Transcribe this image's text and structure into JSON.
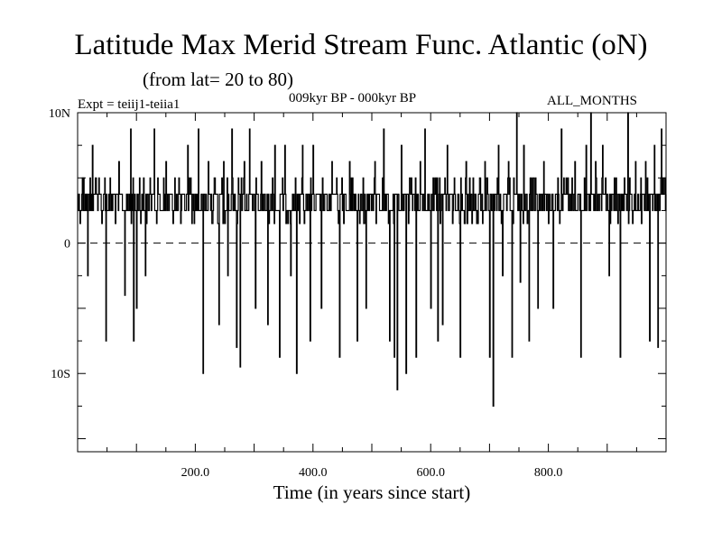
{
  "header": {
    "title": "Latitude Max Merid Stream Func. Atlantic (oN)",
    "subtitle": "(from lat= 20 to 80)",
    "expt": "Expt = teiij1-teiia1",
    "period": "009kyr BP - 000kyr BP",
    "months": "ALL_MONTHS"
  },
  "colors": {
    "line": "#000000",
    "background": "#ffffff"
  },
  "chart_data": {
    "type": "line",
    "title": "Latitude Max Merid Stream Func. Atlantic (oN)",
    "subtitle": "(from lat= 20 to 80)",
    "xlabel": "Time (in years since start)",
    "ylabel": "",
    "xlim": [
      0,
      1000
    ],
    "ylim": [
      -16,
      10
    ],
    "x_ticks": [
      {
        "value": 200,
        "label": "200.0"
      },
      {
        "value": 400,
        "label": "400.0"
      },
      {
        "value": 600,
        "label": "600.0"
      },
      {
        "value": 800,
        "label": "800.0"
      }
    ],
    "y_ticks": [
      {
        "value": 10,
        "label": "10N"
      },
      {
        "value": 0,
        "label": "0"
      },
      {
        "value": -10,
        "label": "10S"
      }
    ],
    "zero_line": "dashed",
    "series": [
      {
        "baseline": [
          2.5,
          3.75
        ],
        "spikes": [
          {
            "x": 10,
            "y": 5
          },
          {
            "x": 17,
            "y": -2.5
          },
          {
            "x": 25,
            "y": 7.5
          },
          {
            "x": 36,
            "y": 5
          },
          {
            "x": 48,
            "y": -7.5
          },
          {
            "x": 55,
            "y": 5
          },
          {
            "x": 70,
            "y": 6.25
          },
          {
            "x": 80,
            "y": -4
          },
          {
            "x": 90,
            "y": 8.75
          },
          {
            "x": 95,
            "y": -7.5
          },
          {
            "x": 100,
            "y": -5
          },
          {
            "x": 105,
            "y": 5
          },
          {
            "x": 115,
            "y": -2.5
          },
          {
            "x": 130,
            "y": 8.75
          },
          {
            "x": 150,
            "y": 6.25
          },
          {
            "x": 165,
            "y": 5
          },
          {
            "x": 175,
            "y": 1.5
          },
          {
            "x": 187,
            "y": 7.5
          },
          {
            "x": 205,
            "y": 8.75
          },
          {
            "x": 213,
            "y": -10
          },
          {
            "x": 222,
            "y": 6.25
          },
          {
            "x": 232,
            "y": 5
          },
          {
            "x": 240,
            "y": -6.25
          },
          {
            "x": 248,
            "y": 6.25
          },
          {
            "x": 255,
            "y": -2.5
          },
          {
            "x": 262,
            "y": 8.75
          },
          {
            "x": 270,
            "y": -8
          },
          {
            "x": 276,
            "y": -9.5
          },
          {
            "x": 283,
            "y": 6.25
          },
          {
            "x": 292,
            "y": 8.75
          },
          {
            "x": 302,
            "y": -5
          },
          {
            "x": 312,
            "y": 6.25
          },
          {
            "x": 323,
            "y": -6.25
          },
          {
            "x": 335,
            "y": 7.5
          },
          {
            "x": 343,
            "y": -8.75
          },
          {
            "x": 352,
            "y": 7.5
          },
          {
            "x": 362,
            "y": -2.5
          },
          {
            "x": 372,
            "y": -10
          },
          {
            "x": 382,
            "y": 7.5
          },
          {
            "x": 395,
            "y": -7.5
          },
          {
            "x": 400,
            "y": 7.5
          },
          {
            "x": 414,
            "y": -5
          },
          {
            "x": 432,
            "y": 6.25
          },
          {
            "x": 445,
            "y": -8.75
          },
          {
            "x": 462,
            "y": 6.25
          },
          {
            "x": 475,
            "y": -7.5
          },
          {
            "x": 490,
            "y": -5
          },
          {
            "x": 505,
            "y": 6.25
          },
          {
            "x": 520,
            "y": 8.75
          },
          {
            "x": 530,
            "y": -7.5
          },
          {
            "x": 538,
            "y": -8.75
          },
          {
            "x": 543,
            "y": -11.25
          },
          {
            "x": 550,
            "y": 7.5
          },
          {
            "x": 558,
            "y": -10
          },
          {
            "x": 565,
            "y": 5
          },
          {
            "x": 575,
            "y": -8.75
          },
          {
            "x": 582,
            "y": 6.25
          },
          {
            "x": 590,
            "y": 8.75
          },
          {
            "x": 600,
            "y": -5
          },
          {
            "x": 612,
            "y": -7.5
          },
          {
            "x": 620,
            "y": -6.25
          },
          {
            "x": 628,
            "y": 7.5
          },
          {
            "x": 640,
            "y": 5
          },
          {
            "x": 650,
            "y": -8.75
          },
          {
            "x": 660,
            "y": 6.25
          },
          {
            "x": 672,
            "y": 5
          },
          {
            "x": 680,
            "y": 1.5
          },
          {
            "x": 692,
            "y": 6.25
          },
          {
            "x": 700,
            "y": -8.75
          },
          {
            "x": 706,
            "y": -12.5
          },
          {
            "x": 715,
            "y": 7.5
          },
          {
            "x": 722,
            "y": -2.5
          },
          {
            "x": 732,
            "y": 6.25
          },
          {
            "x": 738,
            "y": -8.75
          },
          {
            "x": 746,
            "y": 10
          },
          {
            "x": 752,
            "y": -3
          },
          {
            "x": 758,
            "y": 7.5
          },
          {
            "x": 767,
            "y": -7.5
          },
          {
            "x": 775,
            "y": 5
          },
          {
            "x": 782,
            "y": -5
          },
          {
            "x": 792,
            "y": 6.25
          },
          {
            "x": 800,
            "y": 1.5
          },
          {
            "x": 808,
            "y": -5
          },
          {
            "x": 822,
            "y": 8.75
          },
          {
            "x": 833,
            "y": 5
          },
          {
            "x": 845,
            "y": 6.25
          },
          {
            "x": 855,
            "y": -8.75
          },
          {
            "x": 864,
            "y": 7.5
          },
          {
            "x": 872,
            "y": 10
          },
          {
            "x": 880,
            "y": 6.25
          },
          {
            "x": 892,
            "y": 7.5
          },
          {
            "x": 903,
            "y": -2.5
          },
          {
            "x": 912,
            "y": 5
          },
          {
            "x": 922,
            "y": -8.75
          },
          {
            "x": 935,
            "y": 10
          },
          {
            "x": 948,
            "y": 6.25
          },
          {
            "x": 958,
            "y": 1.5
          },
          {
            "x": 965,
            "y": 6.25
          },
          {
            "x": 972,
            "y": -7.5
          },
          {
            "x": 980,
            "y": 7.5
          },
          {
            "x": 986,
            "y": -8
          },
          {
            "x": 992,
            "y": 8.75
          },
          {
            "x": 997,
            "y": 5
          }
        ]
      }
    ]
  }
}
